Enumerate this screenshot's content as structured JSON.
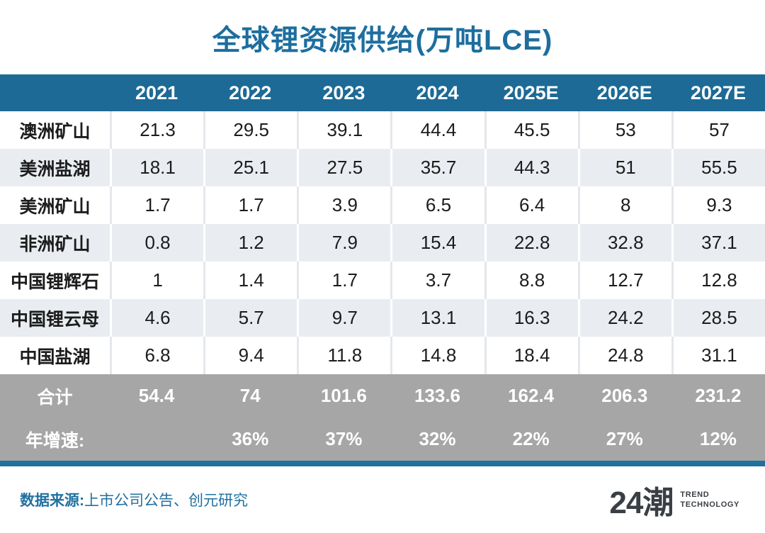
{
  "title": "全球锂资源供给(万吨LCE)",
  "table": {
    "header": [
      "",
      "2021",
      "2022",
      "2023",
      "2024",
      "2025E",
      "2026E",
      "2027E"
    ],
    "rows": [
      {
        "label": "澳洲矿山",
        "values": [
          "21.3",
          "29.5",
          "39.1",
          "44.4",
          "45.5",
          "53",
          "57"
        ]
      },
      {
        "label": "美洲盐湖",
        "values": [
          "18.1",
          "25.1",
          "27.5",
          "35.7",
          "44.3",
          "51",
          "55.5"
        ]
      },
      {
        "label": "美洲矿山",
        "values": [
          "1.7",
          "1.7",
          "3.9",
          "6.5",
          "6.4",
          "8",
          "9.3"
        ]
      },
      {
        "label": "非洲矿山",
        "values": [
          "0.8",
          "1.2",
          "7.9",
          "15.4",
          "22.8",
          "32.8",
          "37.1"
        ]
      },
      {
        "label": "中国锂辉石",
        "values": [
          "1",
          "1.4",
          "1.7",
          "3.7",
          "8.8",
          "12.7",
          "12.8"
        ]
      },
      {
        "label": "中国锂云母",
        "values": [
          "4.6",
          "5.7",
          "9.7",
          "13.1",
          "16.3",
          "24.2",
          "28.5"
        ]
      },
      {
        "label": "中国盐湖",
        "values": [
          "6.8",
          "9.4",
          "11.8",
          "14.8",
          "18.4",
          "24.8",
          "31.1"
        ]
      }
    ],
    "footer": [
      {
        "label": "合计",
        "values": [
          "54.4",
          "74",
          "101.6",
          "133.6",
          "162.4",
          "206.3",
          "231.2"
        ]
      },
      {
        "label": "年增速:",
        "values": [
          "",
          "36%",
          "37%",
          "32%",
          "22%",
          "27%",
          "12%"
        ]
      }
    ]
  },
  "source": {
    "prefix": "数据来源:",
    "text": "上市公司公告、创元研究"
  },
  "logo": {
    "brand": "24潮",
    "tagline": [
      "TREND",
      "TECHNOLOGY"
    ]
  },
  "colors": {
    "title_text": "#1d6e9e",
    "header_bg": "#1d6a96",
    "alt_row_bg": "#e9edf1",
    "footer_bg": "#a6a6a6",
    "stripe": "#21719f",
    "source_text": "#21719f",
    "logo_text": "#3a3f45"
  },
  "chart_data": {
    "type": "table",
    "title": "全球锂资源供给(万吨LCE)",
    "unit": "万吨LCE",
    "categories": [
      "2021",
      "2022",
      "2023",
      "2024",
      "2025E",
      "2026E",
      "2027E"
    ],
    "series": [
      {
        "name": "澳洲矿山",
        "values": [
          21.3,
          29.5,
          39.1,
          44.4,
          45.5,
          53,
          57
        ]
      },
      {
        "name": "美洲盐湖",
        "values": [
          18.1,
          25.1,
          27.5,
          35.7,
          44.3,
          51,
          55.5
        ]
      },
      {
        "name": "美洲矿山",
        "values": [
          1.7,
          1.7,
          3.9,
          6.5,
          6.4,
          8,
          9.3
        ]
      },
      {
        "name": "非洲矿山",
        "values": [
          0.8,
          1.2,
          7.9,
          15.4,
          22.8,
          32.8,
          37.1
        ]
      },
      {
        "name": "中国锂辉石",
        "values": [
          1,
          1.4,
          1.7,
          3.7,
          8.8,
          12.7,
          12.8
        ]
      },
      {
        "name": "中国锂云母",
        "values": [
          4.6,
          5.7,
          9.7,
          13.1,
          16.3,
          24.2,
          28.5
        ]
      },
      {
        "name": "中国盐湖",
        "values": [
          6.8,
          9.4,
          11.8,
          14.8,
          18.4,
          24.8,
          31.1
        ]
      },
      {
        "name": "合计",
        "values": [
          54.4,
          74,
          101.6,
          133.6,
          162.4,
          206.3,
          231.2
        ]
      },
      {
        "name": "年增速",
        "values": [
          null,
          0.36,
          0.37,
          0.32,
          0.22,
          0.27,
          0.12
        ]
      }
    ]
  }
}
